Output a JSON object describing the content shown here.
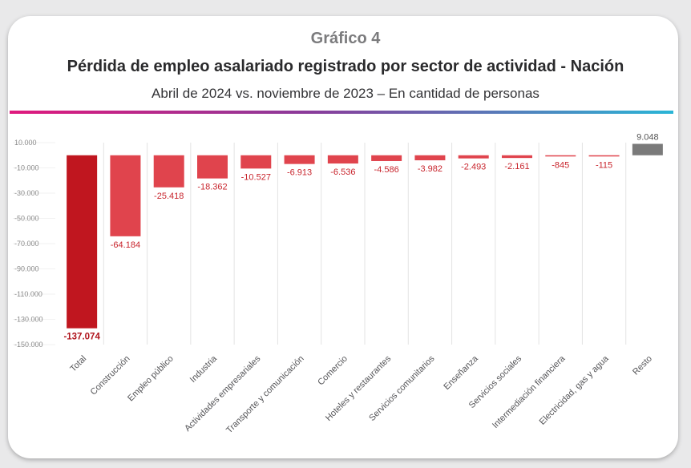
{
  "header": {
    "figure_label": "Gráfico 4",
    "title": "Pérdida de empleo asalariado registrado por sector de actividad - Nación",
    "subtitle": "Abril de 2024 vs. noviembre de 2023 – En cantidad de personas"
  },
  "colors": {
    "negative_dark": "#c0161f",
    "negative_bar": "#e0444d",
    "positive_bar": "#7a7a7a",
    "gradient_start": "#e0197d",
    "gradient_end": "#2ab5d6"
  },
  "chart_data": {
    "type": "bar",
    "title": "Pérdida de empleo asalariado registrado por sector de actividad - Nación",
    "subtitle": "Abril de 2024 vs. noviembre de 2023 – En cantidad de personas",
    "xlabel": "",
    "ylabel": "",
    "ylim": [
      -150000,
      10000
    ],
    "yticks": [
      10000,
      -10000,
      -30000,
      -50000,
      -70000,
      -90000,
      -110000,
      -130000,
      -150000
    ],
    "ytick_labels": [
      "10.000",
      "-10.000",
      "-30.000",
      "-50.000",
      "-70.000",
      "-90.000",
      "-110.000",
      "-130.000",
      "-150.000"
    ],
    "grid": "vertical separators",
    "categories": [
      "Total",
      "Construcción",
      "Empleo público",
      "Industria",
      "Actividades empresariales",
      "Transporte y comunicación",
      "Comercio",
      "Hoteles y restaurantes",
      "Servicios comunitarios",
      "Enseñanza",
      "Servicios sociales",
      "Intermediación financiera",
      "Electricidad, gas y agua",
      "Resto"
    ],
    "values": [
      -137074,
      -64184,
      -25418,
      -18362,
      -10527,
      -6913,
      -6536,
      -4586,
      -3982,
      -2493,
      -2161,
      -845,
      -115,
      9048
    ],
    "value_labels": [
      "-137.074",
      "-64.184",
      "-25.418",
      "-18.362",
      "-10.527",
      "-6.913",
      "-6.536",
      "-4.586",
      "-3.982",
      "-2.493",
      "-2.161",
      "-845",
      "-115",
      "9.048"
    ]
  }
}
